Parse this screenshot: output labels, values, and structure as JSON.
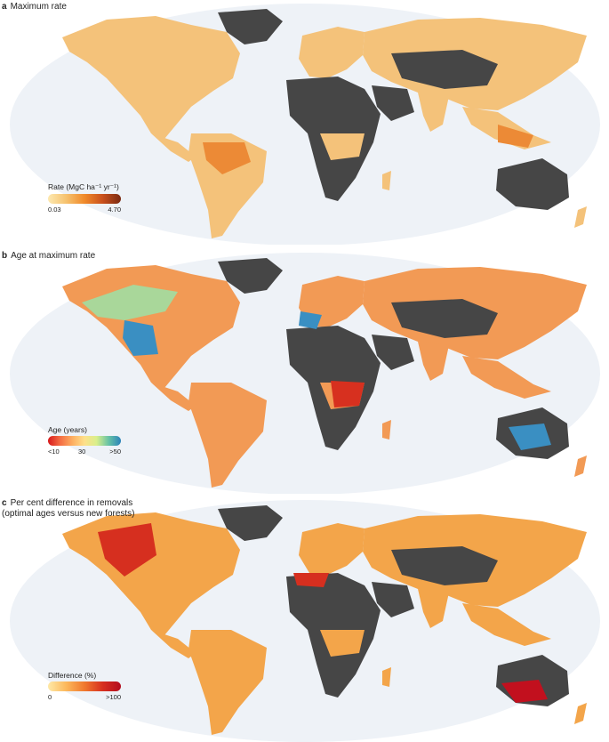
{
  "panels": [
    {
      "letter": "a",
      "title": "Maximum rate",
      "legend": {
        "title": "Rate (MgC ha⁻¹ yr⁻¹)",
        "min": "0.03",
        "max": "4.70"
      }
    },
    {
      "letter": "b",
      "title": "Age at maximum rate",
      "legend": {
        "title": "Age (years)",
        "min": "<10",
        "mid": "30",
        "max": ">50"
      }
    },
    {
      "letter": "c",
      "title": "Per cent difference in removals (optimal ages versus new forests)",
      "legend": {
        "title": "Difference (%)",
        "min": "0",
        "max": ">100"
      }
    }
  ],
  "colors": {
    "ocean": "#eef2f7",
    "no_data_land": "#464646",
    "panel_a_fill": "#f4c27a",
    "panel_b_fill": "#f29a55",
    "panel_b_cool": "#3a8fc2",
    "panel_c_fill": "#f3a54a",
    "panel_c_hot": "#d62f1f"
  }
}
